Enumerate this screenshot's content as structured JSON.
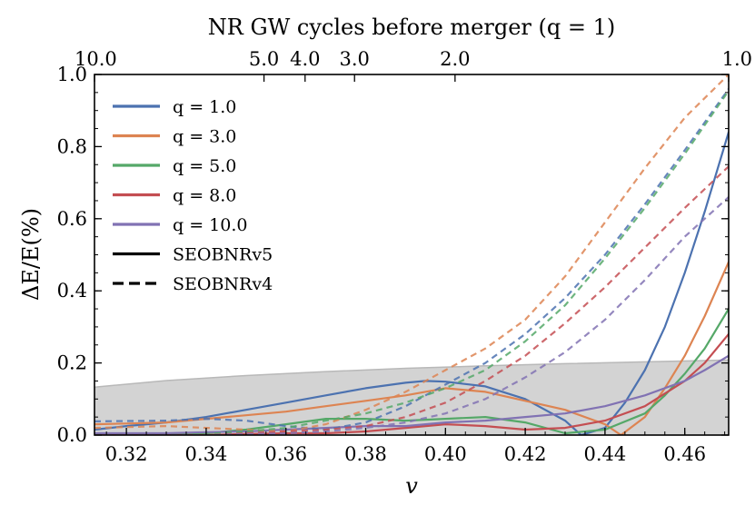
{
  "chart_data": {
    "type": "line",
    "xlabel": "v",
    "ylabel": "ΔE/E(%)",
    "top_axis_label": "NR GW cycles before merger (q = 1)",
    "xlim": [
      0.312,
      0.471
    ],
    "ylim": [
      0.0,
      1.0
    ],
    "x_ticks": [
      0.32,
      0.34,
      0.36,
      0.38,
      0.4,
      0.42,
      0.44,
      0.46
    ],
    "x_tick_labels": [
      "0.32",
      "0.34",
      "0.36",
      "0.38",
      "0.40",
      "0.42",
      "0.44",
      "0.46"
    ],
    "y_ticks": [
      0.0,
      0.2,
      0.4,
      0.6,
      0.8,
      1.0
    ],
    "y_tick_labels": [
      "0.0",
      "0.2",
      "0.4",
      "0.6",
      "0.8",
      "1.0"
    ],
    "top_ticks": [
      {
        "v": 0.312,
        "label": "10.0"
      },
      {
        "v": 0.3545,
        "label": "5.0"
      },
      {
        "v": 0.3648,
        "label": "4.0"
      },
      {
        "v": 0.3772,
        "label": "3.0"
      },
      {
        "v": 0.4024,
        "label": "2.0"
      },
      {
        "v": 0.471,
        "label": "1.0"
      }
    ],
    "legend_position": "upper-left",
    "legend": [
      {
        "label": "q = 1.0",
        "color": "#4c72b0",
        "style": "solid"
      },
      {
        "label": "q = 3.0",
        "color": "#dd8452",
        "style": "solid"
      },
      {
        "label": "q = 5.0",
        "color": "#55a868",
        "style": "solid"
      },
      {
        "label": "q = 8.0",
        "color": "#c44e52",
        "style": "solid"
      },
      {
        "label": "q = 10.0",
        "color": "#8172b3",
        "style": "solid"
      },
      {
        "label": "SEOBNRv5",
        "color": "#000000",
        "style": "solid"
      },
      {
        "label": "SEOBNRv4",
        "color": "#000000",
        "style": "dashed"
      }
    ],
    "nr_error_band": {
      "color": "#d3d3d3",
      "x": [
        0.312,
        0.33,
        0.35,
        0.37,
        0.39,
        0.41,
        0.43,
        0.45,
        0.471
      ],
      "upper": [
        0.133,
        0.151,
        0.165,
        0.176,
        0.185,
        0.192,
        0.198,
        0.203,
        0.208
      ]
    },
    "series": [
      {
        "name": "q=1.0 SEOBNRv5",
        "color": "#4c72b0",
        "style": "solid",
        "x": [
          0.312,
          0.32,
          0.33,
          0.34,
          0.35,
          0.36,
          0.37,
          0.38,
          0.39,
          0.395,
          0.4,
          0.41,
          0.42,
          0.43,
          0.434,
          0.44,
          0.445,
          0.45,
          0.455,
          0.46,
          0.465,
          0.471
        ],
        "y": [
          0.015,
          0.025,
          0.035,
          0.05,
          0.07,
          0.09,
          0.11,
          0.13,
          0.145,
          0.15,
          0.148,
          0.135,
          0.1,
          0.04,
          0.0,
          0.02,
          0.09,
          0.18,
          0.3,
          0.45,
          0.62,
          0.84
        ]
      },
      {
        "name": "q=3.0 SEOBNRv5",
        "color": "#dd8452",
        "style": "solid",
        "x": [
          0.312,
          0.32,
          0.33,
          0.34,
          0.35,
          0.355,
          0.36,
          0.37,
          0.38,
          0.39,
          0.4,
          0.41,
          0.42,
          0.43,
          0.44,
          0.444,
          0.45,
          0.455,
          0.46,
          0.465,
          0.471
        ],
        "y": [
          0.03,
          0.032,
          0.035,
          0.045,
          0.055,
          0.06,
          0.065,
          0.08,
          0.095,
          0.11,
          0.13,
          0.12,
          0.095,
          0.07,
          0.03,
          0.0,
          0.05,
          0.13,
          0.22,
          0.33,
          0.48
        ]
      },
      {
        "name": "q=5.0 SEOBNRv5",
        "color": "#55a868",
        "style": "solid",
        "x": [
          0.312,
          0.32,
          0.33,
          0.34,
          0.35,
          0.36,
          0.37,
          0.38,
          0.39,
          0.4,
          0.41,
          0.42,
          0.43,
          0.44,
          0.45,
          0.455,
          0.46,
          0.465,
          0.471
        ],
        "y": [
          0.0,
          0.0,
          0.0,
          0.005,
          0.015,
          0.03,
          0.045,
          0.045,
          0.04,
          0.045,
          0.05,
          0.035,
          0.005,
          0.015,
          0.06,
          0.11,
          0.17,
          0.24,
          0.35
        ]
      },
      {
        "name": "q=8.0 SEOBNRv5",
        "color": "#c44e52",
        "style": "solid",
        "x": [
          0.312,
          0.32,
          0.33,
          0.34,
          0.35,
          0.36,
          0.37,
          0.38,
          0.39,
          0.4,
          0.41,
          0.42,
          0.43,
          0.44,
          0.45,
          0.46,
          0.465,
          0.471
        ],
        "y": [
          0.0,
          0.0,
          0.0,
          0.0,
          0.003,
          0.005,
          0.005,
          0.01,
          0.02,
          0.03,
          0.025,
          0.015,
          0.02,
          0.04,
          0.08,
          0.15,
          0.2,
          0.28
        ]
      },
      {
        "name": "q=10.0 SEOBNRv5",
        "color": "#8172b3",
        "style": "solid",
        "x": [
          0.312,
          0.32,
          0.33,
          0.34,
          0.35,
          0.36,
          0.37,
          0.38,
          0.39,
          0.4,
          0.41,
          0.42,
          0.43,
          0.44,
          0.45,
          0.46,
          0.465,
          0.471
        ],
        "y": [
          0.005,
          0.005,
          0.005,
          0.008,
          0.01,
          0.015,
          0.02,
          0.025,
          0.025,
          0.035,
          0.04,
          0.05,
          0.06,
          0.08,
          0.11,
          0.15,
          0.18,
          0.22
        ]
      },
      {
        "name": "q=1.0 SEOBNRv4",
        "color": "#4c72b0",
        "style": "dashed",
        "x": [
          0.312,
          0.33,
          0.34,
          0.35,
          0.36,
          0.37,
          0.38,
          0.39,
          0.4,
          0.41,
          0.42,
          0.43,
          0.44,
          0.45,
          0.46,
          0.471
        ],
        "y": [
          0.038,
          0.04,
          0.045,
          0.04,
          0.025,
          0.015,
          0.035,
          0.08,
          0.14,
          0.2,
          0.28,
          0.38,
          0.5,
          0.64,
          0.79,
          0.96
        ]
      },
      {
        "name": "q=3.0 SEOBNRv4",
        "color": "#dd8452",
        "style": "dashed",
        "x": [
          0.312,
          0.33,
          0.34,
          0.35,
          0.36,
          0.37,
          0.38,
          0.39,
          0.4,
          0.41,
          0.42,
          0.43,
          0.44,
          0.45,
          0.46,
          0.471
        ],
        "y": [
          0.02,
          0.025,
          0.02,
          0.015,
          0.01,
          0.03,
          0.07,
          0.12,
          0.18,
          0.24,
          0.32,
          0.44,
          0.59,
          0.74,
          0.88,
          1.0
        ]
      },
      {
        "name": "q=5.0 SEOBNRv4",
        "color": "#55a868",
        "style": "dashed",
        "x": [
          0.312,
          0.33,
          0.34,
          0.35,
          0.36,
          0.37,
          0.38,
          0.39,
          0.4,
          0.41,
          0.42,
          0.43,
          0.44,
          0.45,
          0.46,
          0.471
        ],
        "y": [
          0.0,
          0.0,
          0.003,
          0.01,
          0.02,
          0.04,
          0.06,
          0.09,
          0.13,
          0.18,
          0.26,
          0.36,
          0.49,
          0.63,
          0.78,
          0.955
        ]
      },
      {
        "name": "q=8.0 SEOBNRv4",
        "color": "#c44e52",
        "style": "dashed",
        "x": [
          0.312,
          0.33,
          0.34,
          0.35,
          0.36,
          0.37,
          0.38,
          0.39,
          0.4,
          0.41,
          0.42,
          0.43,
          0.44,
          0.45,
          0.46,
          0.471
        ],
        "y": [
          0.0,
          0.0,
          0.0,
          0.005,
          0.01,
          0.015,
          0.025,
          0.05,
          0.09,
          0.15,
          0.22,
          0.31,
          0.41,
          0.52,
          0.63,
          0.745
        ]
      },
      {
        "name": "q=10.0 SEOBNRv4",
        "color": "#8172b3",
        "style": "dashed",
        "x": [
          0.312,
          0.33,
          0.34,
          0.35,
          0.36,
          0.37,
          0.38,
          0.39,
          0.4,
          0.41,
          0.42,
          0.43,
          0.44,
          0.45,
          0.46,
          0.471
        ],
        "y": [
          0.0,
          0.0,
          0.0,
          0.002,
          0.005,
          0.01,
          0.02,
          0.035,
          0.06,
          0.1,
          0.16,
          0.23,
          0.32,
          0.43,
          0.55,
          0.66
        ]
      }
    ]
  }
}
